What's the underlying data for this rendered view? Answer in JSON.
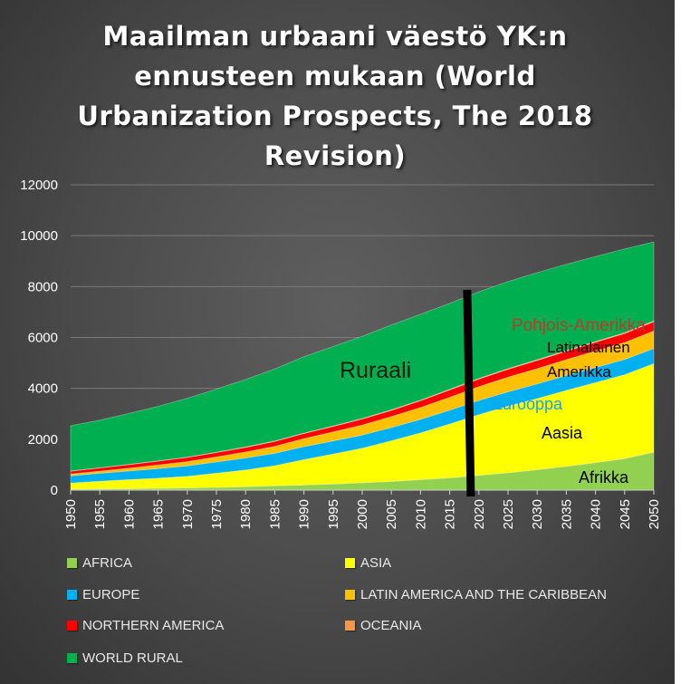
{
  "title": "Maailman urbaani väestö YK:n ennusteen mukaan (World Urbanization Prospects, The 2018 Revision)",
  "legend": [
    {
      "label": "AFRICA",
      "color": "#92d050"
    },
    {
      "label": "ASIA",
      "color": "#ffff00"
    },
    {
      "label": "EUROPE",
      "color": "#00b0f0"
    },
    {
      "label": "LATIN AMERICA AND THE CARIBBEAN",
      "color": "#ffc000"
    },
    {
      "label": "NORTHERN AMERICA",
      "color": "#ff0000"
    },
    {
      "label": "OCEANIA",
      "color": "#f79646"
    },
    {
      "label": "WORLD RURAL",
      "color": "#00b050"
    }
  ],
  "annotations": {
    "rural": "Ruraali",
    "northern_america": "Pohjois-Amerikka",
    "latin_america_line1": "Latinalainen",
    "latin_america_line2": "Amerikka",
    "europe": "Eurooppa",
    "asia": "Aasia",
    "africa": "Afrikka"
  },
  "chart_data": {
    "type": "area",
    "stacked": true,
    "title": "Maailman urbaani väestö YK:n ennusteen mukaan (World Urbanization Prospects, The 2018 Revision)",
    "xlabel": "",
    "ylabel": "",
    "ylim": [
      0,
      12000
    ],
    "yticks": [
      0,
      2000,
      4000,
      6000,
      8000,
      10000,
      12000
    ],
    "grid": "horizontal",
    "legend_position": "bottom",
    "marker_year": 2018,
    "x": [
      1950,
      1955,
      1960,
      1965,
      1970,
      1975,
      1980,
      1985,
      1990,
      1995,
      2000,
      2005,
      2010,
      2015,
      2020,
      2025,
      2030,
      2035,
      2040,
      2045,
      2050
    ],
    "series": [
      {
        "name": "AFRICA",
        "color": "#92d050",
        "values": [
          33,
          41,
          53,
          69,
          86,
          106,
          135,
          170,
          200,
          240,
          290,
          340,
          410,
          480,
          580,
          680,
          800,
          930,
          1080,
          1240,
          1490
        ]
      },
      {
        "name": "ASIA",
        "color": "#ffff00",
        "values": [
          250,
          310,
          360,
          400,
          460,
          560,
          660,
          790,
          1000,
          1180,
          1360,
          1600,
          1840,
          2120,
          2390,
          2620,
          2800,
          2990,
          3150,
          3300,
          3480
        ]
      },
      {
        "name": "EUROPE",
        "color": "#00b0f0",
        "values": [
          280,
          310,
          340,
          380,
          410,
          440,
          470,
          490,
          510,
          515,
          515,
          520,
          530,
          545,
          555,
          565,
          575,
          585,
          590,
          595,
          600
        ]
      },
      {
        "name": "LATIN AMERICA AND THE CARIBBEAN",
        "color": "#ffc000",
        "values": [
          70,
          85,
          110,
          140,
          165,
          200,
          235,
          275,
          315,
          355,
          395,
          430,
          470,
          505,
          540,
          575,
          600,
          625,
          650,
          670,
          690
        ]
      },
      {
        "name": "NORTHERN AMERICA",
        "color": "#ff0000",
        "values": [
          110,
          125,
          140,
          150,
          165,
          170,
          180,
          190,
          200,
          215,
          235,
          245,
          265,
          290,
          300,
          310,
          320,
          330,
          340,
          350,
          360
        ]
      },
      {
        "name": "OCEANIA",
        "color": "#f79646",
        "values": [
          8,
          9,
          11,
          13,
          15,
          16,
          17,
          18,
          19,
          20,
          22,
          23,
          25,
          28,
          29,
          30,
          31,
          33,
          34,
          35,
          36
        ]
      },
      {
        "name": "WORLD RURAL",
        "color": "#00b050",
        "values": [
          1780,
          1870,
          2000,
          2140,
          2310,
          2480,
          2650,
          2830,
          3000,
          3120,
          3230,
          3330,
          3370,
          3370,
          3400,
          3420,
          3420,
          3380,
          3340,
          3290,
          3100
        ]
      }
    ]
  }
}
